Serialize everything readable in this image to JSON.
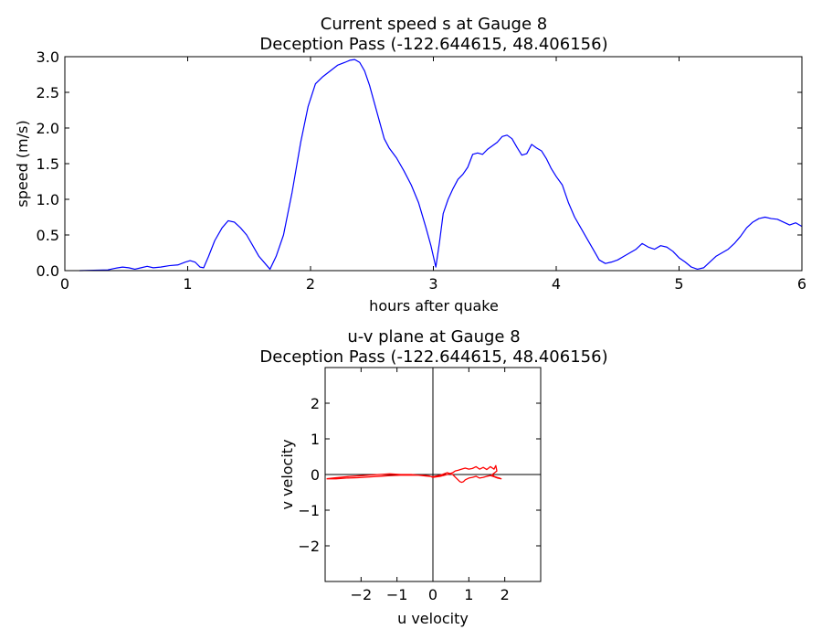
{
  "chart_data": [
    {
      "type": "line",
      "title": "Current speed s at Gauge 8",
      "subtitle": "Deception Pass  (-122.644615, 48.406156)",
      "xlabel": "hours after quake",
      "ylabel": "speed (m/s)",
      "xlim": [
        0,
        6
      ],
      "ylim": [
        0,
        3.0
      ],
      "xticks": [
        0,
        1,
        2,
        3,
        4,
        5,
        6
      ],
      "xtick_labels": [
        "0",
        "1",
        "2",
        "3",
        "4",
        "5",
        "6"
      ],
      "yticks": [
        0,
        0.5,
        1.0,
        1.5,
        2.0,
        2.5,
        3.0
      ],
      "ytick_labels": [
        "0.0",
        "0.5",
        "1.0",
        "1.5",
        "2.0",
        "2.5",
        "3.0"
      ],
      "grid": false,
      "line_color": "#0000ff",
      "series": [
        {
          "x": [
            0.12,
            0.35,
            0.4,
            0.47,
            0.52,
            0.57,
            0.62,
            0.67,
            0.72,
            0.78,
            0.85,
            0.92,
            0.98,
            1.02,
            1.06,
            1.1,
            1.13,
            1.17,
            1.22,
            1.28,
            1.33,
            1.38,
            1.43,
            1.48,
            1.53,
            1.58,
            1.63,
            1.67,
            1.72,
            1.78,
            1.85,
            1.92,
            1.98,
            2.04,
            2.1,
            2.16,
            2.22,
            2.28,
            2.32,
            2.36,
            2.4,
            2.44,
            2.48,
            2.52,
            2.56,
            2.6,
            2.64,
            2.7,
            2.76,
            2.82,
            2.88,
            2.94,
            2.98,
            3.02,
            3.05,
            3.08,
            3.12,
            3.16,
            3.2,
            3.24,
            3.28,
            3.32,
            3.36,
            3.4,
            3.44,
            3.48,
            3.52,
            3.56,
            3.6,
            3.64,
            3.68,
            3.72,
            3.76,
            3.8,
            3.84,
            3.88,
            3.92,
            3.96,
            4.0,
            4.05,
            4.1,
            4.15,
            4.2,
            4.25,
            4.3,
            4.35,
            4.4,
            4.45,
            4.5,
            4.55,
            4.6,
            4.65,
            4.7,
            4.75,
            4.8,
            4.85,
            4.9,
            4.95,
            5.0,
            5.05,
            5.1,
            5.15,
            5.2,
            5.25,
            5.3,
            5.35,
            5.4,
            5.45,
            5.5,
            5.55,
            5.6,
            5.65,
            5.7,
            5.75,
            5.8,
            5.85,
            5.9,
            5.95,
            6.0
          ],
          "y": [
            0.0,
            0.01,
            0.03,
            0.05,
            0.04,
            0.02,
            0.04,
            0.06,
            0.04,
            0.05,
            0.07,
            0.08,
            0.12,
            0.14,
            0.12,
            0.05,
            0.04,
            0.2,
            0.42,
            0.6,
            0.7,
            0.68,
            0.6,
            0.5,
            0.35,
            0.2,
            0.1,
            0.02,
            0.2,
            0.5,
            1.1,
            1.8,
            2.3,
            2.62,
            2.72,
            2.8,
            2.88,
            2.92,
            2.95,
            2.96,
            2.92,
            2.8,
            2.6,
            2.35,
            2.1,
            1.85,
            1.72,
            1.58,
            1.4,
            1.2,
            0.95,
            0.6,
            0.35,
            0.05,
            0.4,
            0.8,
            1.0,
            1.15,
            1.28,
            1.35,
            1.45,
            1.63,
            1.65,
            1.63,
            1.7,
            1.75,
            1.8,
            1.88,
            1.9,
            1.85,
            1.73,
            1.62,
            1.64,
            1.77,
            1.72,
            1.68,
            1.57,
            1.43,
            1.32,
            1.2,
            0.95,
            0.75,
            0.6,
            0.45,
            0.3,
            0.15,
            0.1,
            0.12,
            0.15,
            0.2,
            0.25,
            0.3,
            0.38,
            0.33,
            0.3,
            0.35,
            0.33,
            0.27,
            0.18,
            0.12,
            0.05,
            0.02,
            0.04,
            0.12,
            0.2,
            0.25,
            0.3,
            0.38,
            0.48,
            0.6,
            0.68,
            0.73,
            0.75,
            0.73,
            0.72,
            0.68,
            0.64,
            0.67,
            0.62
          ]
        }
      ]
    },
    {
      "type": "line",
      "title": "u-v plane at Gauge 8",
      "subtitle": "Deception Pass  (-122.644615, 48.406156)",
      "xlabel": "u velocity",
      "ylabel": "v velocity",
      "xlim": [
        -3,
        3
      ],
      "ylim": [
        -3,
        3
      ],
      "xticks": [
        -2,
        -1,
        0,
        1,
        2
      ],
      "xtick_labels": [
        "−2",
        "−1",
        "0",
        "1",
        "2"
      ],
      "yticks": [
        -2,
        -1,
        0,
        1,
        2
      ],
      "ytick_labels": [
        "−2",
        "−1",
        "0",
        "1",
        "2"
      ],
      "grid": false,
      "axis_lines": {
        "u": 0,
        "v": 0
      },
      "line_color": "#ff0000",
      "series": [
        {
          "u": [
            -2.96,
            -2.7,
            -2.4,
            -2.1,
            -1.8,
            -1.5,
            -1.2,
            -0.9,
            -0.6,
            -0.3,
            -0.1,
            0.0,
            0.2,
            0.4,
            0.55,
            0.62,
            0.7,
            0.8,
            0.9,
            1.0,
            1.1,
            1.2,
            1.3,
            1.4,
            1.5,
            1.55,
            1.6,
            1.7,
            1.75,
            1.78,
            1.72,
            1.65,
            1.7,
            1.78,
            1.85,
            1.9,
            1.8,
            1.7,
            1.6,
            1.5,
            1.4,
            1.3,
            1.2,
            1.1,
            1.0,
            0.9,
            0.85,
            0.8,
            0.75,
            0.65,
            0.55,
            0.4,
            0.2,
            0.0,
            -0.2,
            -0.4,
            -0.6,
            -0.9,
            -1.2,
            -1.5,
            -1.8,
            -2.1,
            -2.4,
            -2.7,
            -2.96
          ],
          "v": [
            -0.12,
            -0.12,
            -0.1,
            -0.09,
            -0.07,
            -0.05,
            -0.03,
            -0.02,
            -0.02,
            -0.02,
            -0.04,
            -0.08,
            -0.05,
            0.0,
            0.05,
            0.1,
            0.12,
            0.15,
            0.18,
            0.15,
            0.17,
            0.22,
            0.15,
            0.2,
            0.14,
            0.18,
            0.22,
            0.15,
            0.25,
            0.1,
            0.05,
            0.0,
            -0.05,
            -0.08,
            -0.1,
            -0.12,
            -0.1,
            -0.06,
            -0.03,
            -0.05,
            -0.08,
            -0.1,
            -0.05,
            -0.08,
            -0.1,
            -0.15,
            -0.2,
            -0.22,
            -0.2,
            -0.1,
            0.0,
            0.05,
            -0.02,
            -0.06,
            -0.04,
            -0.02,
            0.0,
            0.0,
            0.02,
            0.0,
            -0.02,
            -0.04,
            -0.06,
            -0.09,
            -0.12
          ]
        }
      ]
    }
  ]
}
